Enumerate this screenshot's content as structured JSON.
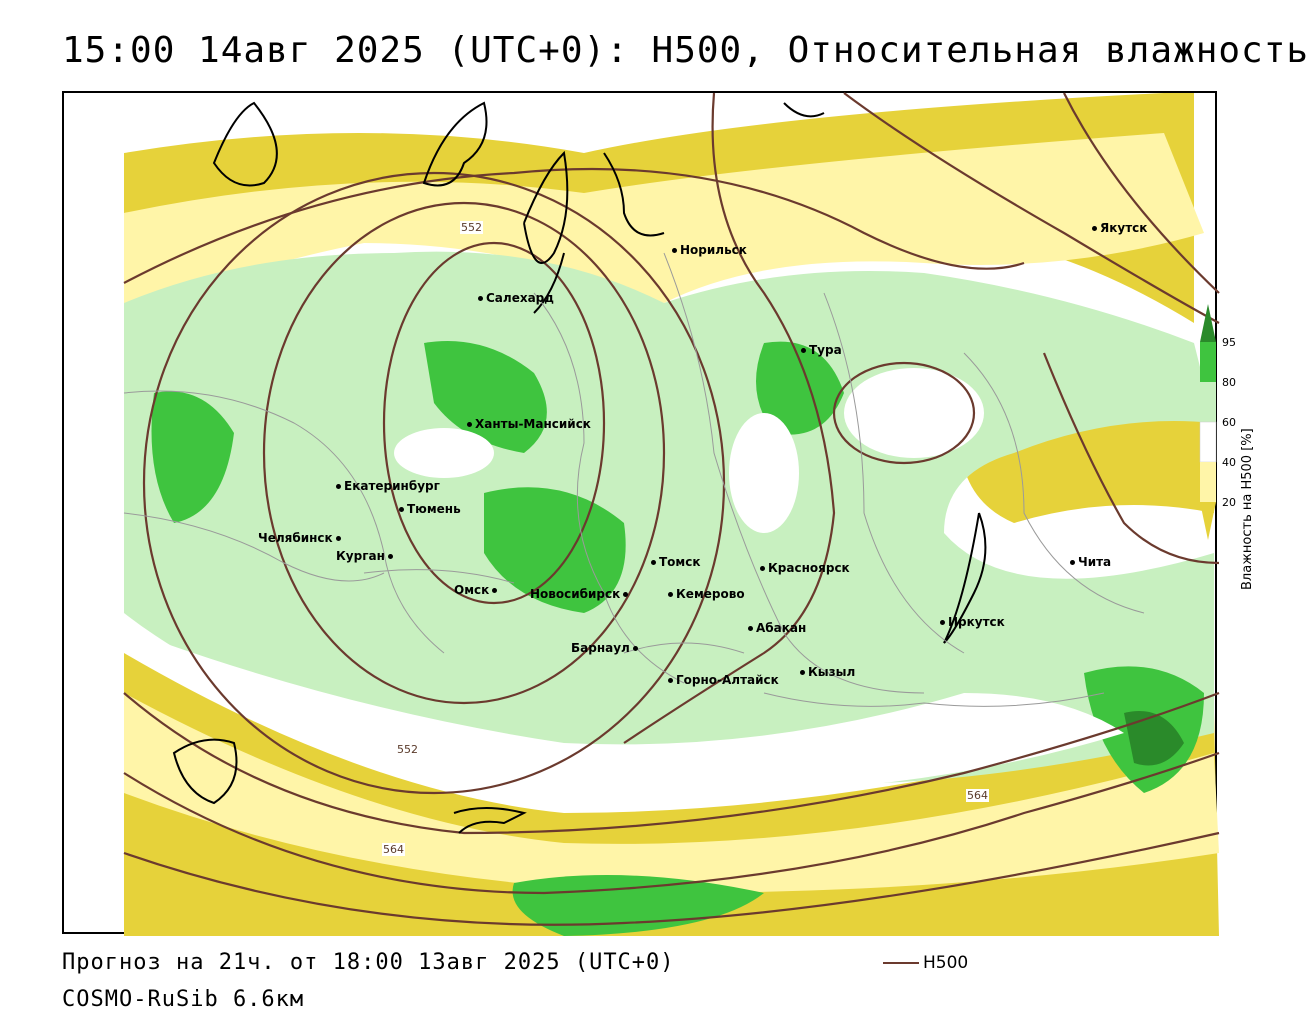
{
  "title": "15:00 14авг 2025 (UTC+0): H500, Относительная влажность",
  "footer": {
    "forecast": "Прогноз на 21ч. от 18:00 13авг 2025 (UTC+0)",
    "model": "COSMO-RuSib 6.6км",
    "line_legend": "H500"
  },
  "legend": {
    "title": "Влажность на H500 [%]",
    "ticks": [
      "95",
      "80",
      "60",
      "40",
      "20"
    ],
    "colors": {
      "c95": "#2a8a2a",
      "c80": "#3fc43f",
      "c60": "#c8f0c0",
      "c40": "#ffffff",
      "c20": "#fff5a8",
      "c0": "#e6d23a"
    }
  },
  "colors": {
    "contour": "#6b3a2e",
    "coast": "#000000",
    "border": "#9a9a9a"
  },
  "contour_labels": [
    "552",
    "552",
    "564",
    "564"
  ],
  "cities": [
    "Якутск",
    "Норильск",
    "Салехард",
    "Тура",
    "Ханты-Мансийск",
    "Екатеринбург",
    "Тюмень",
    "Челябинск",
    "Курган",
    "Омск",
    "Новосибирск",
    "Томск",
    "Кемерово",
    "Красноярск",
    "Барнаул",
    "Абакан",
    "Горно-Алтайск",
    "Кызыл",
    "Иркутск",
    "Чита"
  ]
}
